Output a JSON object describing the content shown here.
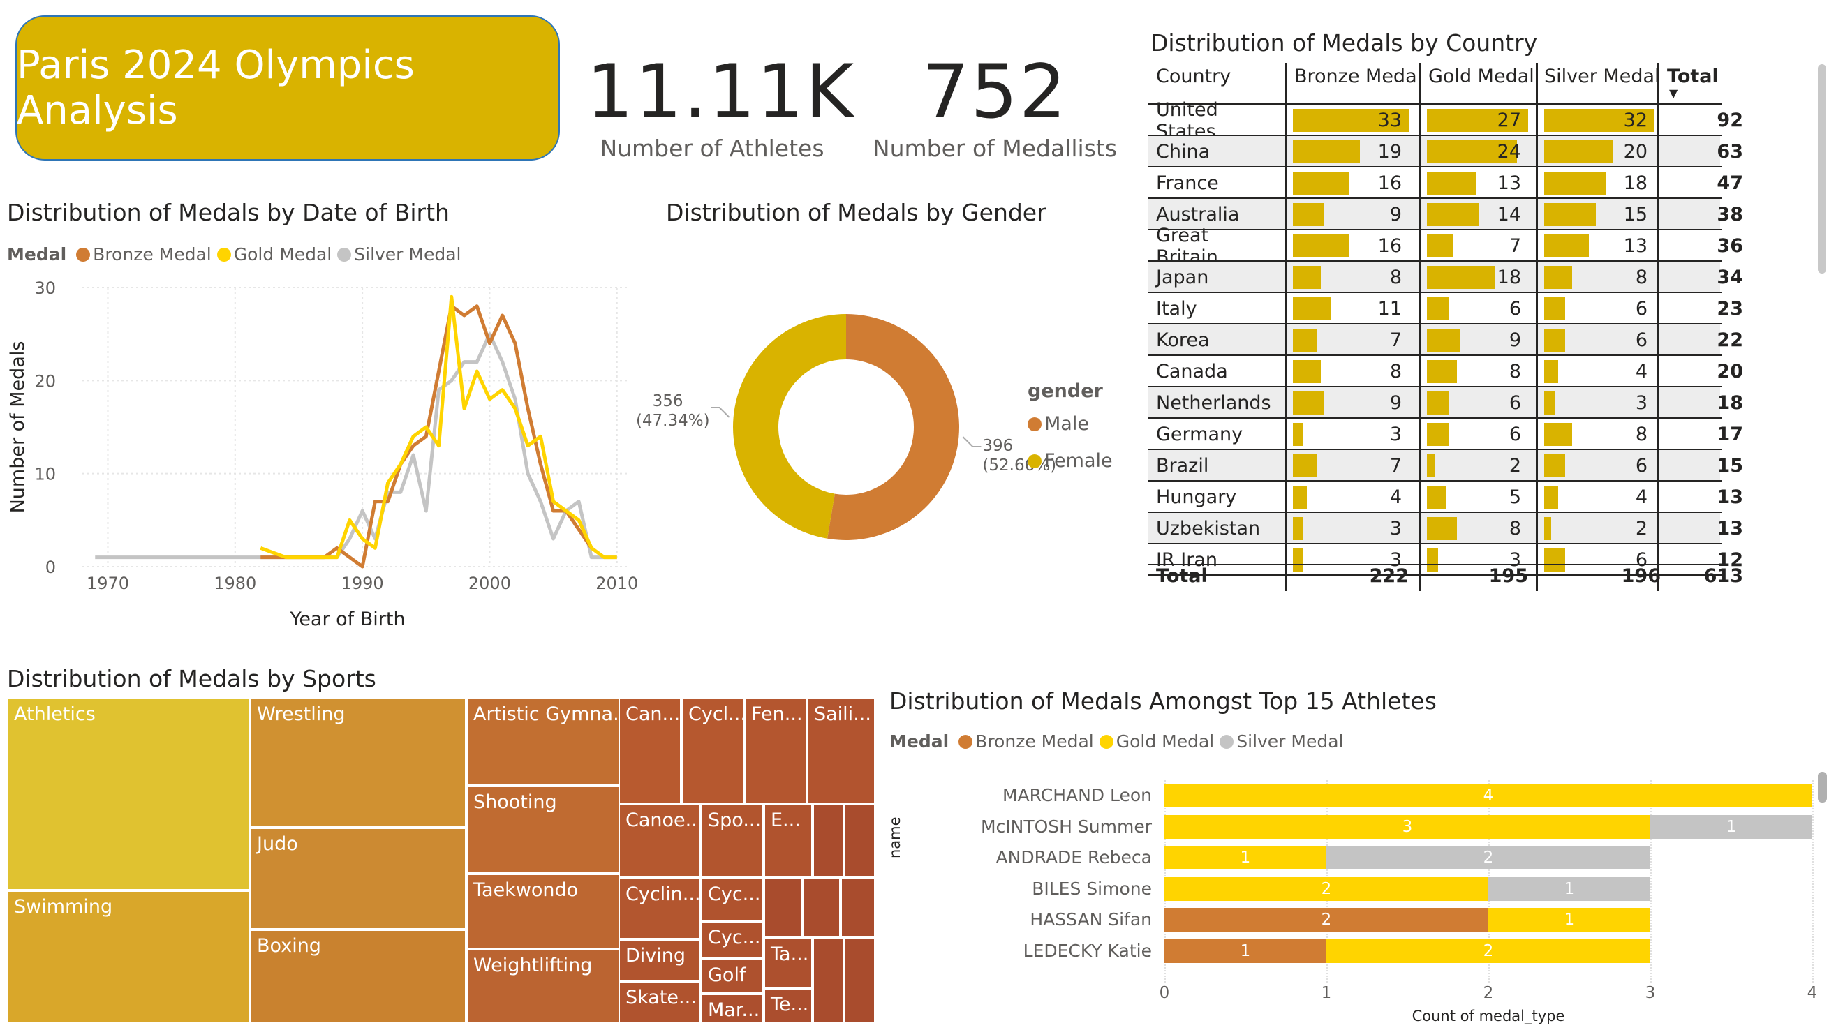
{
  "title": "Paris 2024 Olympics Analysis",
  "colors": {
    "bronze": "#d07c33",
    "gold": "#ffd400",
    "silver": "#c4c4c4",
    "accent": "#d9b300"
  },
  "kpis": [
    {
      "value": "11.11K",
      "label": "Number of Athletes"
    },
    {
      "value": "752",
      "label": "Number of Medallists"
    }
  ],
  "legend_medal": {
    "title": "Medal",
    "items": [
      "Bronze Medal",
      "Gold Medal",
      "Silver Medal"
    ]
  },
  "dob_chart": {
    "title": "Distribution of Medals by Date of Birth",
    "chart_data": {
      "type": "line",
      "xlabel": "Year of Birth",
      "ylabel": "Number of Medals",
      "xticks": [
        "1970",
        "1980",
        "1990",
        "2000",
        "2010"
      ],
      "yticks": [
        "0",
        "10",
        "20",
        "30"
      ],
      "xlim": [
        1968,
        2011
      ],
      "ylim": [
        0,
        30
      ],
      "series": [
        {
          "name": "Bronze Medal",
          "points": [
            [
              1982,
              1
            ],
            [
              1987,
              1
            ],
            [
              1988,
              2
            ],
            [
              1989,
              1
            ],
            [
              1990,
              0
            ],
            [
              1991,
              7
            ],
            [
              1992,
              7
            ],
            [
              1993,
              11
            ],
            [
              1994,
              13
            ],
            [
              1995,
              14
            ],
            [
              1996,
              21
            ],
            [
              1997,
              28
            ],
            [
              1998,
              27
            ],
            [
              1999,
              28
            ],
            [
              2000,
              24
            ],
            [
              2001,
              27
            ],
            [
              2002,
              24
            ],
            [
              2003,
              17
            ],
            [
              2004,
              11
            ],
            [
              2005,
              6
            ],
            [
              2006,
              6
            ],
            [
              2007,
              4
            ],
            [
              2008,
              2
            ]
          ]
        },
        {
          "name": "Gold Medal",
          "points": [
            [
              1982,
              2
            ],
            [
              1984,
              1
            ],
            [
              1987,
              1
            ],
            [
              1988,
              1
            ],
            [
              1989,
              5
            ],
            [
              1990,
              3
            ],
            [
              1991,
              2
            ],
            [
              1992,
              9
            ],
            [
              1993,
              11
            ],
            [
              1994,
              14
            ],
            [
              1995,
              15
            ],
            [
              1996,
              13
            ],
            [
              1997,
              29
            ],
            [
              1998,
              17
            ],
            [
              1999,
              21
            ],
            [
              2000,
              18
            ],
            [
              2001,
              19
            ],
            [
              2002,
              17
            ],
            [
              2003,
              13
            ],
            [
              2004,
              14
            ],
            [
              2005,
              7
            ],
            [
              2006,
              6
            ],
            [
              2007,
              5
            ],
            [
              2008,
              2
            ],
            [
              2009,
              1
            ],
            [
              2010,
              1
            ]
          ]
        },
        {
          "name": "Silver Medal",
          "points": [
            [
              1969,
              1
            ],
            [
              1975,
              1
            ],
            [
              1984,
              1
            ],
            [
              1988,
              1
            ],
            [
              1989,
              3
            ],
            [
              1990,
              6
            ],
            [
              1991,
              3
            ],
            [
              1992,
              8
            ],
            [
              1993,
              8
            ],
            [
              1994,
              12
            ],
            [
              1995,
              6
            ],
            [
              1996,
              19
            ],
            [
              1997,
              20
            ],
            [
              1998,
              22
            ],
            [
              1999,
              22
            ],
            [
              2000,
              25
            ],
            [
              2001,
              22
            ],
            [
              2002,
              18
            ],
            [
              2003,
              10
            ],
            [
              2004,
              7
            ],
            [
              2005,
              3
            ],
            [
              2006,
              6
            ],
            [
              2007,
              7
            ],
            [
              2008,
              1
            ],
            [
              2009,
              1
            ],
            [
              2010,
              1
            ]
          ]
        }
      ]
    }
  },
  "gender_chart": {
    "title": "Distribution of Medals by Gender",
    "legend_title": "gender",
    "chart_data": {
      "type": "pie",
      "slices": [
        {
          "name": "Male",
          "value": 396,
          "label1": "396",
          "label2": "(52.66%)",
          "color": "#d07c33"
        },
        {
          "name": "Female",
          "value": 356,
          "label1": "356",
          "label2": "(47.34%)",
          "color": "#d9b300"
        }
      ]
    }
  },
  "country_table": {
    "title": "Distribution of Medals by Country",
    "headers": [
      "Country",
      "Bronze Medal",
      "Gold Medal",
      "Silver Medal",
      "Total"
    ],
    "rows": [
      {
        "country": "United States",
        "bronze": 33,
        "gold": 27,
        "silver": 32,
        "total": 92
      },
      {
        "country": "China",
        "bronze": 19,
        "gold": 24,
        "silver": 20,
        "total": 63
      },
      {
        "country": "France",
        "bronze": 16,
        "gold": 13,
        "silver": 18,
        "total": 47
      },
      {
        "country": "Australia",
        "bronze": 9,
        "gold": 14,
        "silver": 15,
        "total": 38
      },
      {
        "country": "Great Britain",
        "bronze": 16,
        "gold": 7,
        "silver": 13,
        "total": 36
      },
      {
        "country": "Japan",
        "bronze": 8,
        "gold": 18,
        "silver": 8,
        "total": 34
      },
      {
        "country": "Italy",
        "bronze": 11,
        "gold": 6,
        "silver": 6,
        "total": 23
      },
      {
        "country": "Korea",
        "bronze": 7,
        "gold": 9,
        "silver": 6,
        "total": 22
      },
      {
        "country": "Canada",
        "bronze": 8,
        "gold": 8,
        "silver": 4,
        "total": 20
      },
      {
        "country": "Netherlands",
        "bronze": 9,
        "gold": 6,
        "silver": 3,
        "total": 18
      },
      {
        "country": "Germany",
        "bronze": 3,
        "gold": 6,
        "silver": 8,
        "total": 17
      },
      {
        "country": "Brazil",
        "bronze": 7,
        "gold": 2,
        "silver": 6,
        "total": 15
      },
      {
        "country": "Hungary",
        "bronze": 4,
        "gold": 5,
        "silver": 4,
        "total": 13
      },
      {
        "country": "Uzbekistan",
        "bronze": 3,
        "gold": 8,
        "silver": 2,
        "total": 13
      },
      {
        "country": "IR Iran",
        "bronze": 3,
        "gold": 3,
        "silver": 6,
        "total": 12
      }
    ],
    "totals": {
      "label": "Total",
      "bronze": "222",
      "gold": "195",
      "silver": "196",
      "total": "613"
    }
  },
  "sports": {
    "title": "Distribution of Medals by Sports",
    "labels": [
      "Athletics",
      "Swimming",
      "Wrestling",
      "Judo",
      "Boxing",
      "Artistic Gymna...",
      "Shooting",
      "Taekwondo",
      "Weightlifting",
      "Can...",
      "Cycl...",
      "Fen...",
      "Saili...",
      "Canoe...",
      "Spo...",
      "E...",
      "Cyclin...",
      "Cyc...",
      "Cyc...",
      "Diving",
      "Golf",
      "Ta...",
      "Skate...",
      "Mar...",
      "Te..."
    ]
  },
  "athletes": {
    "title": "Distribution of Medals Amongst Top 15 Athletes",
    "ylabel": "name",
    "xlabel": "Count of medal_type",
    "chart_data": {
      "type": "bar",
      "categories": [
        "MARCHAND Leon",
        "McINTOSH Summer",
        "ANDRADE Rebeca",
        "BILES Simone",
        "HASSAN Sifan",
        "LEDECKY Katie"
      ],
      "series": [
        {
          "name": "Bronze Medal",
          "values": [
            0,
            0,
            0,
            0,
            2,
            1
          ]
        },
        {
          "name": "Gold Medal",
          "values": [
            4,
            3,
            1,
            2,
            1,
            2
          ]
        },
        {
          "name": "Silver Medal",
          "values": [
            0,
            1,
            2,
            1,
            0,
            0
          ]
        }
      ],
      "xticks": [
        "0",
        "1",
        "2",
        "3",
        "4"
      ],
      "xlim": [
        0,
        4
      ]
    }
  }
}
